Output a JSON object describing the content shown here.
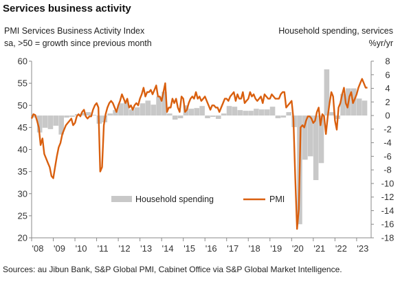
{
  "title": "Services business activity",
  "left_subtitle": [
    "PMI Services Business Activity Index",
    "sa, >50 = growth since previous month"
  ],
  "right_subtitle": [
    "Household spending, services",
    "%yr/yr"
  ],
  "source": "Sources: au Jibun Bank, S&P Global PMI, Cabinet Office via S&P Global Market Intelligence.",
  "colors": {
    "pmi": "#d95f0e",
    "spending": "#c8c8c8",
    "axis": "#888888"
  },
  "chart_data": {
    "type": "line",
    "title": "Services business activity",
    "x_range": [
      2008.0,
      2023.67
    ],
    "x_tick_labels": [
      "'08",
      "'09",
      "'10",
      "'11",
      "'12",
      "'13",
      "'14",
      "'15",
      "'16",
      "'17",
      "'18",
      "'19",
      "'20",
      "'21",
      "'22",
      "'23"
    ],
    "left_axis": {
      "label": "PMI Services Business Activity Index",
      "range": [
        20,
        60
      ],
      "ticks": [
        20,
        25,
        30,
        35,
        40,
        45,
        50,
        55,
        60
      ]
    },
    "right_axis": {
      "label": "Household spending, services %yr/yr",
      "range": [
        -18,
        8
      ],
      "ticks": [
        -18,
        -16,
        -14,
        -12,
        -10,
        -8,
        -6,
        -4,
        -2,
        0,
        2,
        4,
        6,
        8
      ]
    },
    "legend": {
      "position": "bottom-center",
      "entries": [
        "Household spending",
        "PMI"
      ]
    },
    "series": [
      {
        "name": "Household spending",
        "type": "bar",
        "axis": "right",
        "points": [
          [
            2008.0,
            -0.3
          ],
          [
            2008.25,
            -2.5
          ],
          [
            2008.5,
            -1.8
          ],
          [
            2008.75,
            -2.0
          ],
          [
            2009.0,
            -1.5
          ],
          [
            2009.25,
            -2.8
          ],
          [
            2009.5,
            -0.3
          ],
          [
            2009.75,
            -0.2
          ],
          [
            2010.0,
            0.2
          ],
          [
            2010.25,
            0.4
          ],
          [
            2010.5,
            0.5
          ],
          [
            2010.75,
            0.1
          ],
          [
            2011.0,
            -1.2
          ],
          [
            2011.25,
            -1.0
          ],
          [
            2011.5,
            0.3
          ],
          [
            2011.75,
            0.8
          ],
          [
            2012.0,
            1.8
          ],
          [
            2012.25,
            2.0
          ],
          [
            2012.5,
            0.9
          ],
          [
            2012.75,
            1.2
          ],
          [
            2013.0,
            1.8
          ],
          [
            2013.25,
            2.2
          ],
          [
            2013.5,
            1.6
          ],
          [
            2013.75,
            2.8
          ],
          [
            2014.0,
            3.5
          ],
          [
            2014.25,
            0.3
          ],
          [
            2014.5,
            -0.6
          ],
          [
            2014.75,
            -0.4
          ],
          [
            2015.0,
            1.5
          ],
          [
            2015.25,
            1.0
          ],
          [
            2015.5,
            1.1
          ],
          [
            2015.75,
            1.4
          ],
          [
            2016.0,
            -0.4
          ],
          [
            2016.25,
            -0.2
          ],
          [
            2016.5,
            -0.5
          ],
          [
            2016.75,
            0.3
          ],
          [
            2017.0,
            1.4
          ],
          [
            2017.25,
            1.3
          ],
          [
            2017.5,
            0.8
          ],
          [
            2017.75,
            0.7
          ],
          [
            2018.0,
            0.7
          ],
          [
            2018.25,
            1.0
          ],
          [
            2018.5,
            0.9
          ],
          [
            2018.75,
            0.9
          ],
          [
            2019.0,
            1.3
          ],
          [
            2019.25,
            -0.4
          ],
          [
            2019.5,
            -0.3
          ],
          [
            2019.75,
            0.5
          ],
          [
            2020.0,
            -1.7
          ],
          [
            2020.25,
            -16.0
          ],
          [
            2020.5,
            -6.5
          ],
          [
            2020.75,
            -6.0
          ],
          [
            2021.0,
            -9.5
          ],
          [
            2021.25,
            -7.0
          ],
          [
            2021.5,
            6.8
          ],
          [
            2021.75,
            0.5
          ],
          [
            2022.0,
            -0.5
          ],
          [
            2022.25,
            3.2
          ],
          [
            2022.5,
            4.0
          ],
          [
            2022.75,
            4.0
          ],
          [
            2023.0,
            2.5
          ],
          [
            2023.25,
            2.2
          ]
        ]
      },
      {
        "name": "PMI",
        "type": "line",
        "axis": "left",
        "points": [
          [
            2008.0,
            47.0
          ],
          [
            2008.083,
            48.0
          ],
          [
            2008.167,
            47.8
          ],
          [
            2008.25,
            46.5
          ],
          [
            2008.333,
            45.0
          ],
          [
            2008.417,
            41.0
          ],
          [
            2008.5,
            42.5
          ],
          [
            2008.583,
            39.0
          ],
          [
            2008.667,
            38.0
          ],
          [
            2008.75,
            37.0
          ],
          [
            2008.833,
            36.0
          ],
          [
            2008.917,
            34.0
          ],
          [
            2009.0,
            33.5
          ],
          [
            2009.083,
            36.0
          ],
          [
            2009.167,
            38.5
          ],
          [
            2009.25,
            40.5
          ],
          [
            2009.333,
            41.5
          ],
          [
            2009.417,
            43.5
          ],
          [
            2009.5,
            44.5
          ],
          [
            2009.583,
            45.5
          ],
          [
            2009.667,
            46.0
          ],
          [
            2009.75,
            46.5
          ],
          [
            2009.833,
            47.0
          ],
          [
            2009.917,
            45.5
          ],
          [
            2010.0,
            46.0
          ],
          [
            2010.083,
            47.5
          ],
          [
            2010.167,
            48.0
          ],
          [
            2010.25,
            47.5
          ],
          [
            2010.333,
            48.5
          ],
          [
            2010.417,
            49.0
          ],
          [
            2010.5,
            47.5
          ],
          [
            2010.583,
            47.0
          ],
          [
            2010.667,
            47.5
          ],
          [
            2010.75,
            47.5
          ],
          [
            2010.833,
            49.0
          ],
          [
            2010.917,
            50.0
          ],
          [
            2011.0,
            50.5
          ],
          [
            2011.083,
            49.5
          ],
          [
            2011.167,
            35.0
          ],
          [
            2011.25,
            36.0
          ],
          [
            2011.333,
            45.5
          ],
          [
            2011.417,
            48.0
          ],
          [
            2011.5,
            49.5
          ],
          [
            2011.583,
            50.5
          ],
          [
            2011.667,
            51.0
          ],
          [
            2011.75,
            50.5
          ],
          [
            2011.833,
            49.5
          ],
          [
            2011.917,
            48.5
          ],
          [
            2012.0,
            50.0
          ],
          [
            2012.083,
            51.0
          ],
          [
            2012.167,
            52.5
          ],
          [
            2012.25,
            51.5
          ],
          [
            2012.333,
            50.5
          ],
          [
            2012.417,
            51.5
          ],
          [
            2012.5,
            49.5
          ],
          [
            2012.583,
            50.0
          ],
          [
            2012.667,
            49.0
          ],
          [
            2012.75,
            50.0
          ],
          [
            2012.833,
            50.5
          ],
          [
            2012.917,
            50.0
          ],
          [
            2013.0,
            51.5
          ],
          [
            2013.083,
            52.5
          ],
          [
            2013.167,
            54.0
          ],
          [
            2013.25,
            52.0
          ],
          [
            2013.333,
            53.0
          ],
          [
            2013.417,
            53.0
          ],
          [
            2013.5,
            53.5
          ],
          [
            2013.583,
            52.5
          ],
          [
            2013.667,
            53.5
          ],
          [
            2013.75,
            54.5
          ],
          [
            2013.833,
            52.0
          ],
          [
            2013.917,
            52.0
          ],
          [
            2014.0,
            51.0
          ],
          [
            2014.083,
            53.0
          ],
          [
            2014.167,
            55.0
          ],
          [
            2014.25,
            48.5
          ],
          [
            2014.333,
            49.5
          ],
          [
            2014.417,
            49.5
          ],
          [
            2014.5,
            51.5
          ],
          [
            2014.583,
            50.5
          ],
          [
            2014.667,
            51.5
          ],
          [
            2014.75,
            49.5
          ],
          [
            2014.833,
            48.5
          ],
          [
            2014.917,
            52.0
          ],
          [
            2015.0,
            51.5
          ],
          [
            2015.083,
            48.5
          ],
          [
            2015.167,
            49.0
          ],
          [
            2015.25,
            50.5
          ],
          [
            2015.333,
            51.5
          ],
          [
            2015.417,
            52.0
          ],
          [
            2015.5,
            51.5
          ],
          [
            2015.583,
            53.0
          ],
          [
            2015.667,
            51.5
          ],
          [
            2015.75,
            52.0
          ],
          [
            2015.833,
            51.0
          ],
          [
            2015.917,
            51.5
          ],
          [
            2016.0,
            52.0
          ],
          [
            2016.083,
            51.0
          ],
          [
            2016.167,
            50.0
          ],
          [
            2016.25,
            49.0
          ],
          [
            2016.333,
            50.0
          ],
          [
            2016.417,
            50.0
          ],
          [
            2016.5,
            49.5
          ],
          [
            2016.583,
            49.5
          ],
          [
            2016.667,
            48.5
          ],
          [
            2016.75,
            49.5
          ],
          [
            2016.833,
            50.5
          ],
          [
            2016.917,
            51.5
          ],
          [
            2017.0,
            51.5
          ],
          [
            2017.083,
            51.0
          ],
          [
            2017.167,
            52.0
          ],
          [
            2017.25,
            52.5
          ],
          [
            2017.333,
            53.0
          ],
          [
            2017.417,
            51.0
          ],
          [
            2017.5,
            52.5
          ],
          [
            2017.583,
            51.5
          ],
          [
            2017.667,
            51.5
          ],
          [
            2017.75,
            53.0
          ],
          [
            2017.833,
            50.5
          ],
          [
            2017.917,
            51.0
          ],
          [
            2018.0,
            51.5
          ],
          [
            2018.083,
            53.0
          ],
          [
            2018.167,
            52.0
          ],
          [
            2018.25,
            52.5
          ],
          [
            2018.333,
            51.5
          ],
          [
            2018.417,
            51.0
          ],
          [
            2018.5,
            51.5
          ],
          [
            2018.583,
            52.0
          ],
          [
            2018.667,
            50.5
          ],
          [
            2018.75,
            52.5
          ],
          [
            2018.833,
            52.0
          ],
          [
            2018.917,
            51.5
          ],
          [
            2019.0,
            51.5
          ],
          [
            2019.083,
            52.5
          ],
          [
            2019.167,
            52.0
          ],
          [
            2019.25,
            51.5
          ],
          [
            2019.333,
            51.5
          ],
          [
            2019.417,
            51.5
          ],
          [
            2019.5,
            52.5
          ],
          [
            2019.583,
            53.0
          ],
          [
            2019.667,
            53.0
          ],
          [
            2019.75,
            49.5
          ],
          [
            2019.833,
            50.0
          ],
          [
            2019.917,
            50.5
          ],
          [
            2020.0,
            51.0
          ],
          [
            2020.083,
            47.0
          ],
          [
            2020.167,
            33.5
          ],
          [
            2020.25,
            22.0
          ],
          [
            2020.333,
            26.5
          ],
          [
            2020.417,
            45.0
          ],
          [
            2020.5,
            45.5
          ],
          [
            2020.583,
            45.0
          ],
          [
            2020.667,
            46.5
          ],
          [
            2020.75,
            47.5
          ],
          [
            2020.833,
            47.5
          ],
          [
            2020.917,
            47.0
          ],
          [
            2021.0,
            46.0
          ],
          [
            2021.083,
            46.5
          ],
          [
            2021.167,
            48.5
          ],
          [
            2021.25,
            49.5
          ],
          [
            2021.333,
            45.5
          ],
          [
            2021.417,
            48.0
          ],
          [
            2021.5,
            47.5
          ],
          [
            2021.583,
            43.5
          ],
          [
            2021.667,
            47.5
          ],
          [
            2021.75,
            50.5
          ],
          [
            2021.833,
            53.0
          ],
          [
            2021.917,
            52.0
          ],
          [
            2022.0,
            46.5
          ],
          [
            2022.083,
            44.5
          ],
          [
            2022.167,
            49.5
          ],
          [
            2022.25,
            50.5
          ],
          [
            2022.333,
            52.5
          ],
          [
            2022.417,
            54.0
          ],
          [
            2022.5,
            50.5
          ],
          [
            2022.583,
            49.5
          ],
          [
            2022.667,
            52.0
          ],
          [
            2022.75,
            53.0
          ],
          [
            2022.833,
            50.5
          ],
          [
            2022.917,
            51.5
          ],
          [
            2023.0,
            52.5
          ],
          [
            2023.083,
            54.0
          ],
          [
            2023.167,
            55.0
          ],
          [
            2023.25,
            56.0
          ],
          [
            2023.333,
            55.0
          ],
          [
            2023.417,
            54.0
          ],
          [
            2023.5,
            54.0
          ]
        ]
      }
    ]
  }
}
